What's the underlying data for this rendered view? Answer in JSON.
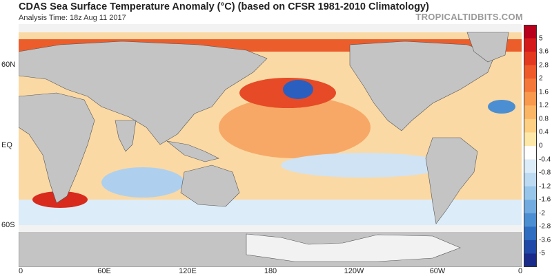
{
  "header": {
    "title": "CDAS Sea Surface Temperature Anomaly (°C) (based on CFSR 1981-2010 Climatology)",
    "subtitle": "Analysis Time: 18z Aug 11 2017",
    "credit": "TROPICALTIDBITS.COM"
  },
  "axes": {
    "latitude_labels": [
      "60N",
      "EQ",
      "60S"
    ],
    "longitude_labels": [
      "0",
      "60E",
      "120E",
      "180",
      "120W",
      "60W",
      "0"
    ]
  },
  "colorbar": {
    "labels": [
      "5",
      "3.6",
      "2.8",
      "2",
      "1.6",
      "1.2",
      "0.8",
      "0.4",
      "0",
      "-0.4",
      "-0.8",
      "-1.2",
      "-1.6",
      "-2",
      "-2.8",
      "-3.6",
      "-5"
    ],
    "colors": [
      "#b8001c",
      "#d41a1a",
      "#e3391f",
      "#ee5a2a",
      "#f5783a",
      "#f9994d",
      "#fbb665",
      "#fdd083",
      "#fde8a8",
      "#ffffff",
      "#dcecf8",
      "#bcdaf2",
      "#98c6ea",
      "#72abdf",
      "#4b8ed2",
      "#2f6dc0",
      "#2049a8",
      "#1a2b8a"
    ]
  },
  "map_colors": {
    "land": "#c4c4c4",
    "ice": "#f2f2f2",
    "warm": "#f4a05c",
    "warm_light": "#fbd9a4",
    "hot": "#d92a1e",
    "cool": "#9cc8ec",
    "cold": "#2a5fc0"
  }
}
